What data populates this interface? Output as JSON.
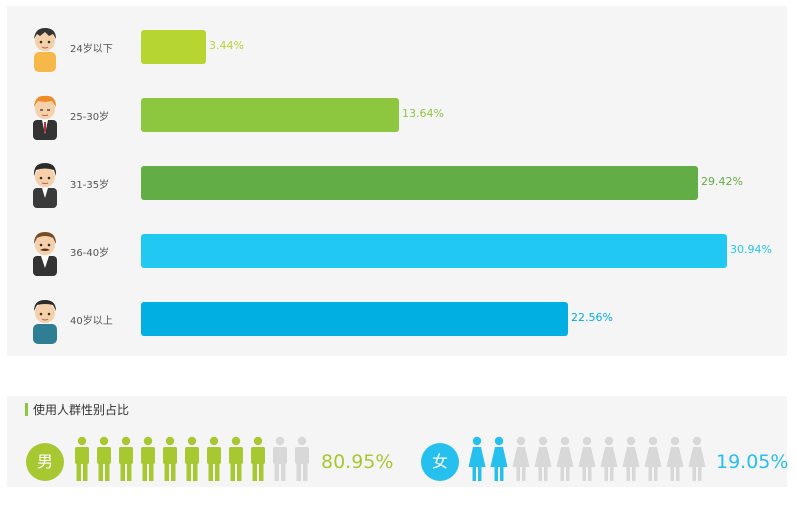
{
  "chart_data": {
    "type": "bar",
    "orientation": "horizontal",
    "categories": [
      "24岁以下",
      "25-30岁",
      "31-35岁",
      "36-40岁",
      "40岁以上"
    ],
    "values": [
      3.44,
      13.64,
      29.42,
      30.94,
      22.56
    ],
    "value_labels": [
      "3.44%",
      "13.64%",
      "29.42%",
      "30.94%",
      "22.56%"
    ],
    "colors": [
      "#b6d531",
      "#8dc63f",
      "#62ad46",
      "#21c8f1",
      "#02afe2"
    ],
    "xlim": [
      0,
      30.94
    ],
    "grid": false,
    "unit": "%"
  },
  "gender": {
    "title": "使用人群性别占比",
    "male": {
      "label": "男",
      "value": 80.95,
      "value_text": "80.95%",
      "figures_total": 11,
      "figures_filled": 9,
      "color": "#a8c832"
    },
    "female": {
      "label": "女",
      "value": 19.05,
      "value_text": "19.05%",
      "figures_total": 11,
      "figures_filled": 2,
      "color": "#26c0ee"
    },
    "inactive_color": "#d8d8d8"
  },
  "avatars": [
    "boy-avatar-icon",
    "orange-hair-man-avatar-icon",
    "suit-man-avatar-icon",
    "mustache-man-avatar-icon",
    "casual-man-avatar-icon"
  ]
}
